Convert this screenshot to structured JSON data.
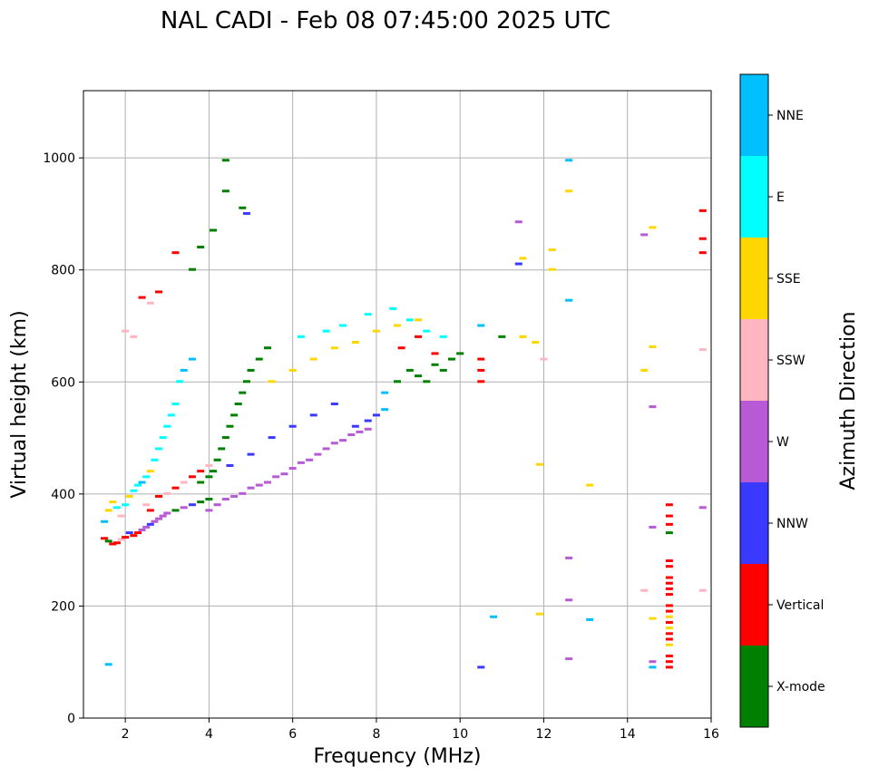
{
  "chart_data": {
    "type": "scatter",
    "title": "NAL CADI - Feb 08 07:45:00 2025 UTC",
    "xlabel": "Frequency (MHz)",
    "ylabel": "Virtual height (km)",
    "xlim": [
      1.0,
      16.0
    ],
    "ylim": [
      0,
      1120
    ],
    "xticks": [
      2,
      4,
      6,
      8,
      10,
      12,
      14,
      16
    ],
    "yticks": [
      0,
      200,
      400,
      600,
      800,
      1000
    ],
    "grid": true,
    "colorbar": {
      "label": "Azimuth Direction",
      "categories": [
        {
          "name": "X-mode",
          "color": "#008000"
        },
        {
          "name": "Vertical",
          "color": "#ff0000"
        },
        {
          "name": "NNW",
          "color": "#3a3aff"
        },
        {
          "name": "W",
          "color": "#b65ad6"
        },
        {
          "name": "SSW",
          "color": "#ffb6c1"
        },
        {
          "name": "SSE",
          "color": "#ffd700"
        },
        {
          "name": "E",
          "color": "#00ffff"
        },
        {
          "name": "NNE",
          "color": "#00bfff"
        }
      ]
    },
    "points": [
      [
        1.5,
        320,
        "Vertical"
      ],
      [
        1.6,
        315,
        "X-mode"
      ],
      [
        1.7,
        310,
        "Vertical"
      ],
      [
        1.8,
        312,
        "Vertical"
      ],
      [
        1.9,
        318,
        "SSW"
      ],
      [
        2.0,
        322,
        "Vertical"
      ],
      [
        2.1,
        330,
        "NNW"
      ],
      [
        2.2,
        325,
        "Vertical"
      ],
      [
        2.3,
        330,
        "Vertical"
      ],
      [
        2.4,
        335,
        "W"
      ],
      [
        2.5,
        340,
        "W"
      ],
      [
        2.6,
        345,
        "NNW"
      ],
      [
        2.7,
        350,
        "W"
      ],
      [
        2.8,
        355,
        "W"
      ],
      [
        2.9,
        360,
        "W"
      ],
      [
        3.0,
        365,
        "W"
      ],
      [
        3.2,
        370,
        "X-mode"
      ],
      [
        3.4,
        375,
        "W"
      ],
      [
        3.6,
        380,
        "NNW"
      ],
      [
        3.8,
        385,
        "X-mode"
      ],
      [
        4.0,
        390,
        "X-mode"
      ],
      [
        1.5,
        350,
        "NNE"
      ],
      [
        1.6,
        370,
        "SSE"
      ],
      [
        1.7,
        385,
        "SSE"
      ],
      [
        1.8,
        375,
        "E"
      ],
      [
        1.9,
        360,
        "SSW"
      ],
      [
        2.0,
        380,
        "E"
      ],
      [
        2.1,
        395,
        "SSE"
      ],
      [
        2.2,
        405,
        "E"
      ],
      [
        2.3,
        415,
        "E"
      ],
      [
        2.4,
        420,
        "NNE"
      ],
      [
        2.5,
        430,
        "E"
      ],
      [
        2.6,
        440,
        "SSE"
      ],
      [
        2.7,
        460,
        "E"
      ],
      [
        2.8,
        480,
        "E"
      ],
      [
        2.9,
        500,
        "E"
      ],
      [
        3.0,
        520,
        "E"
      ],
      [
        3.1,
        540,
        "E"
      ],
      [
        3.2,
        560,
        "E"
      ],
      [
        3.3,
        600,
        "E"
      ],
      [
        3.4,
        620,
        "NNE"
      ],
      [
        3.6,
        640,
        "NNE"
      ],
      [
        2.5,
        380,
        "SSW"
      ],
      [
        2.6,
        370,
        "Vertical"
      ],
      [
        2.8,
        395,
        "Vertical"
      ],
      [
        3.0,
        400,
        "SSW"
      ],
      [
        3.2,
        410,
        "Vertical"
      ],
      [
        3.4,
        420,
        "SSW"
      ],
      [
        3.6,
        430,
        "Vertical"
      ],
      [
        3.8,
        440,
        "Vertical"
      ],
      [
        4.0,
        450,
        "SSW"
      ],
      [
        3.8,
        420,
        "X-mode"
      ],
      [
        4.0,
        430,
        "X-mode"
      ],
      [
        4.1,
        440,
        "X-mode"
      ],
      [
        4.2,
        460,
        "X-mode"
      ],
      [
        4.3,
        480,
        "X-mode"
      ],
      [
        4.4,
        500,
        "X-mode"
      ],
      [
        4.5,
        520,
        "X-mode"
      ],
      [
        4.6,
        540,
        "X-mode"
      ],
      [
        4.7,
        560,
        "X-mode"
      ],
      [
        4.8,
        580,
        "X-mode"
      ],
      [
        4.9,
        600,
        "X-mode"
      ],
      [
        5.0,
        620,
        "X-mode"
      ],
      [
        5.2,
        640,
        "X-mode"
      ],
      [
        5.4,
        660,
        "X-mode"
      ],
      [
        4.0,
        370,
        "W"
      ],
      [
        4.2,
        380,
        "W"
      ],
      [
        4.4,
        390,
        "W"
      ],
      [
        4.6,
        395,
        "W"
      ],
      [
        4.8,
        400,
        "W"
      ],
      [
        5.0,
        410,
        "W"
      ],
      [
        5.2,
        415,
        "W"
      ],
      [
        5.4,
        420,
        "W"
      ],
      [
        5.6,
        430,
        "W"
      ],
      [
        5.8,
        435,
        "W"
      ],
      [
        6.0,
        445,
        "W"
      ],
      [
        6.2,
        455,
        "W"
      ],
      [
        6.4,
        460,
        "W"
      ],
      [
        6.6,
        470,
        "W"
      ],
      [
        6.8,
        480,
        "W"
      ],
      [
        7.0,
        490,
        "W"
      ],
      [
        7.2,
        495,
        "W"
      ],
      [
        7.4,
        505,
        "W"
      ],
      [
        7.6,
        510,
        "W"
      ],
      [
        7.8,
        515,
        "W"
      ],
      [
        4.5,
        450,
        "NNW"
      ],
      [
        5.0,
        470,
        "NNW"
      ],
      [
        5.5,
        500,
        "NNW"
      ],
      [
        6.0,
        520,
        "NNW"
      ],
      [
        6.5,
        540,
        "NNW"
      ],
      [
        7.0,
        560,
        "NNW"
      ],
      [
        7.5,
        520,
        "NNW"
      ],
      [
        7.8,
        530,
        "NNW"
      ],
      [
        8.0,
        540,
        "NNW"
      ],
      [
        8.2,
        550,
        "NNE"
      ],
      [
        8.2,
        580,
        "NNE"
      ],
      [
        5.5,
        600,
        "SSE"
      ],
      [
        6.0,
        620,
        "SSE"
      ],
      [
        6.5,
        640,
        "SSE"
      ],
      [
        7.0,
        660,
        "SSE"
      ],
      [
        7.5,
        670,
        "SSE"
      ],
      [
        8.0,
        690,
        "SSE"
      ],
      [
        8.5,
        700,
        "SSE"
      ],
      [
        9.0,
        710,
        "SSE"
      ],
      [
        6.2,
        680,
        "E"
      ],
      [
        6.8,
        690,
        "E"
      ],
      [
        7.2,
        700,
        "E"
      ],
      [
        7.8,
        720,
        "E"
      ],
      [
        8.4,
        730,
        "E"
      ],
      [
        8.8,
        710,
        "E"
      ],
      [
        9.2,
        690,
        "E"
      ],
      [
        9.6,
        680,
        "E"
      ],
      [
        8.5,
        600,
        "X-mode"
      ],
      [
        8.8,
        620,
        "X-mode"
      ],
      [
        9.0,
        610,
        "X-mode"
      ],
      [
        9.2,
        600,
        "X-mode"
      ],
      [
        9.4,
        630,
        "X-mode"
      ],
      [
        9.6,
        620,
        "X-mode"
      ],
      [
        9.8,
        640,
        "X-mode"
      ],
      [
        10.0,
        650,
        "X-mode"
      ],
      [
        8.6,
        660,
        "Vertical"
      ],
      [
        9.0,
        680,
        "Vertical"
      ],
      [
        9.4,
        650,
        "Vertical"
      ],
      [
        10.5,
        620,
        "Vertical"
      ],
      [
        10.5,
        640,
        "Vertical"
      ],
      [
        10.5,
        600,
        "Vertical"
      ],
      [
        10.5,
        700,
        "NNE"
      ],
      [
        11.0,
        680,
        "X-mode"
      ],
      [
        11.5,
        680,
        "SSE"
      ],
      [
        11.8,
        670,
        "SSE"
      ],
      [
        12.0,
        640,
        "SSW"
      ],
      [
        11.5,
        820,
        "SSE"
      ],
      [
        11.4,
        885,
        "W"
      ],
      [
        12.2,
        835,
        "SSE"
      ],
      [
        12.2,
        800,
        "SSE"
      ],
      [
        11.4,
        810,
        "NNW"
      ],
      [
        12.6,
        995,
        "NNE"
      ],
      [
        12.6,
        940,
        "SSE"
      ],
      [
        12.6,
        745,
        "NNE"
      ],
      [
        12.6,
        285,
        "W"
      ],
      [
        12.6,
        210,
        "W"
      ],
      [
        12.6,
        105,
        "W"
      ],
      [
        13.1,
        415,
        "SSE"
      ],
      [
        13.1,
        175,
        "NNE"
      ],
      [
        10.8,
        180,
        "NNE"
      ],
      [
        10.5,
        90,
        "NNW"
      ],
      [
        11.9,
        185,
        "SSE"
      ],
      [
        11.9,
        452,
        "SSE"
      ],
      [
        14.4,
        862,
        "W"
      ],
      [
        14.6,
        875,
        "SSE"
      ],
      [
        14.6,
        662,
        "SSE"
      ],
      [
        14.4,
        620,
        "SSE"
      ],
      [
        14.6,
        555,
        "W"
      ],
      [
        14.6,
        340,
        "W"
      ],
      [
        14.4,
        227,
        "SSW"
      ],
      [
        14.6,
        177,
        "SSE"
      ],
      [
        14.6,
        100,
        "W"
      ],
      [
        14.6,
        90,
        "NNE"
      ],
      [
        15.0,
        380,
        "Vertical"
      ],
      [
        15.0,
        360,
        "Vertical"
      ],
      [
        15.0,
        345,
        "Vertical"
      ],
      [
        15.0,
        330,
        "X-mode"
      ],
      [
        15.0,
        280,
        "Vertical"
      ],
      [
        15.0,
        270,
        "Vertical"
      ],
      [
        15.0,
        250,
        "Vertical"
      ],
      [
        15.0,
        240,
        "Vertical"
      ],
      [
        15.0,
        230,
        "Vertical"
      ],
      [
        15.0,
        220,
        "Vertical"
      ],
      [
        15.0,
        200,
        "Vertical"
      ],
      [
        15.0,
        190,
        "Vertical"
      ],
      [
        15.0,
        180,
        "SSE"
      ],
      [
        15.0,
        170,
        "Vertical"
      ],
      [
        15.0,
        160,
        "SSE"
      ],
      [
        15.0,
        150,
        "Vertical"
      ],
      [
        15.0,
        140,
        "Vertical"
      ],
      [
        15.0,
        130,
        "SSE"
      ],
      [
        15.0,
        110,
        "Vertical"
      ],
      [
        15.0,
        100,
        "Vertical"
      ],
      [
        15.0,
        90,
        "Vertical"
      ],
      [
        15.8,
        905,
        "Vertical"
      ],
      [
        15.8,
        855,
        "Vertical"
      ],
      [
        15.8,
        830,
        "Vertical"
      ],
      [
        15.8,
        657,
        "SSW"
      ],
      [
        15.8,
        375,
        "W"
      ],
      [
        15.8,
        227,
        "SSW"
      ],
      [
        1.6,
        95,
        "NNE"
      ],
      [
        2.0,
        690,
        "SSW"
      ],
      [
        2.2,
        680,
        "SSW"
      ],
      [
        2.4,
        750,
        "Vertical"
      ],
      [
        2.6,
        740,
        "SSW"
      ],
      [
        2.8,
        760,
        "Vertical"
      ],
      [
        3.2,
        830,
        "Vertical"
      ],
      [
        3.6,
        800,
        "X-mode"
      ],
      [
        3.8,
        840,
        "X-mode"
      ],
      [
        4.1,
        870,
        "X-mode"
      ],
      [
        4.4,
        940,
        "X-mode"
      ],
      [
        4.4,
        995,
        "X-mode"
      ],
      [
        4.8,
        910,
        "X-mode"
      ],
      [
        4.9,
        900,
        "NNW"
      ]
    ]
  }
}
